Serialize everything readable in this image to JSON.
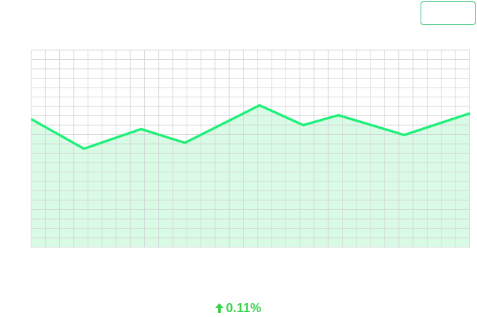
{
  "colors": {
    "line": "#1ef07a",
    "fill": "#d9fbe6",
    "grid": "#d2d2d2",
    "change_positive": "#39d34a",
    "button_border": "#2fbf71"
  },
  "header": {
    "button_label": ""
  },
  "chart_data": {
    "type": "area",
    "title": "",
    "xlabel": "",
    "ylabel": "",
    "grid": true,
    "legend": "none",
    "x": [
      0,
      1.2,
      2.5,
      3.5,
      5.2,
      6.2,
      7.0,
      8.5,
      10.0
    ],
    "series": [
      {
        "values": [
          65,
          50,
          60,
          53,
          72,
          62,
          67,
          57,
          68
        ]
      }
    ],
    "xlim": [
      0,
      10
    ],
    "ylim": [
      0,
      100
    ]
  },
  "change": {
    "direction_icon": "arrow-up-icon",
    "value": "0.11%"
  }
}
